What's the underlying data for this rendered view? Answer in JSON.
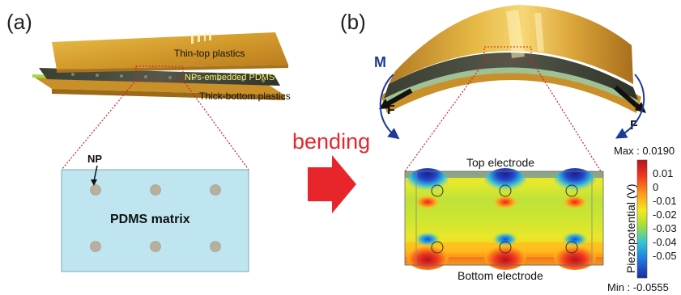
{
  "panels": {
    "a": {
      "label": "(a)",
      "layers": {
        "top": "Thin-top plastics",
        "middle": "NPs-embedded PDMS",
        "bottom": "Thick-bottom plastics"
      },
      "inset": {
        "np_label": "NP",
        "matrix_label": "PDMS matrix"
      }
    },
    "b": {
      "label": "(b)",
      "force_left": "F",
      "force_right": "F",
      "moment": "M",
      "simulation": {
        "top_electrode": "Top electrode",
        "bottom_electrode": "Bottom electrode"
      },
      "colorbar": {
        "max_label": "Max : 0.0190",
        "min_label": "Min : -0.0555",
        "axis_label": "Piezopotential (V)",
        "ticks": [
          "0.01",
          "0",
          "-0.01",
          "-0.02",
          "-0.03",
          "-0.04",
          "-0.05"
        ],
        "colors": [
          "#b8121a",
          "#f23a1f",
          "#ffa21b",
          "#f2ea1e",
          "#a9de3a",
          "#2fc6d6",
          "#1f73df",
          "#1d2a9a"
        ]
      }
    }
  },
  "transition_label": "bending",
  "colors": {
    "gold": "#d9a233",
    "matrix_fill": "#bfe6f0",
    "np_fill": "#b7b09d",
    "arrow": "#e8252b",
    "moment_arrow": "#1d3a9a",
    "leader": "#cc2222"
  }
}
